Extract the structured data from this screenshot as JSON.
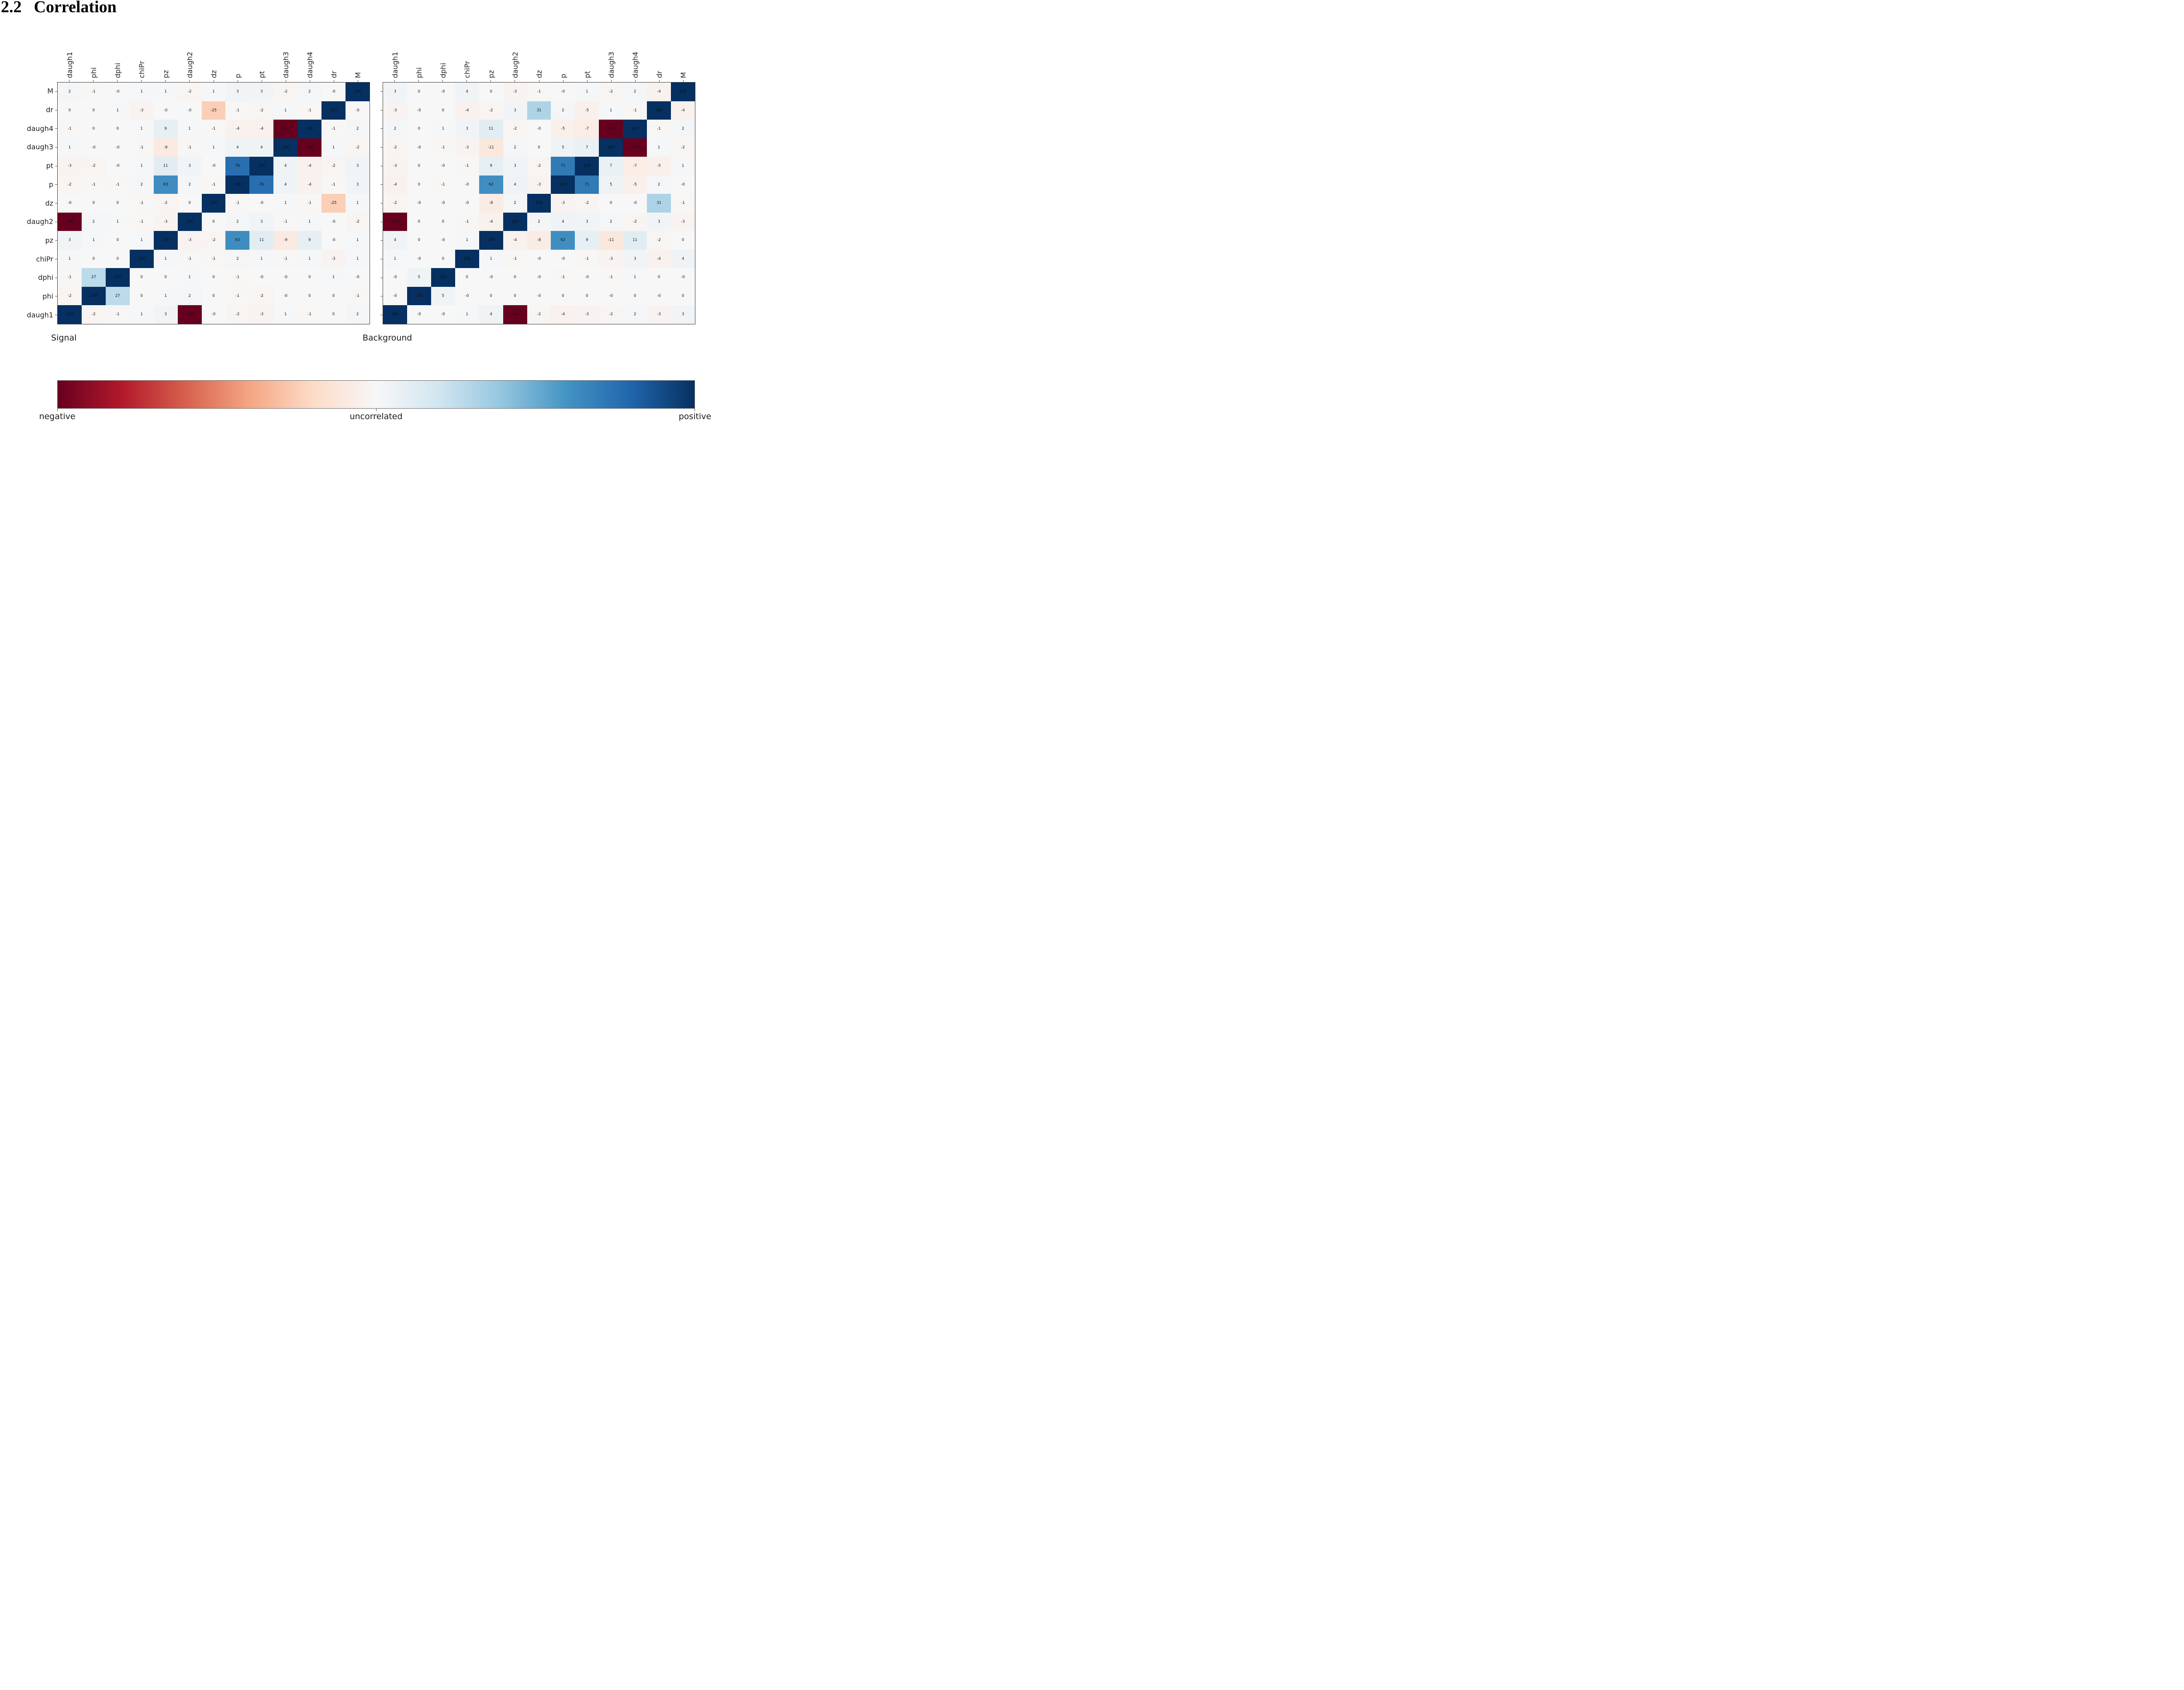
{
  "title": {
    "number": "2.2",
    "text": "Correlation"
  },
  "colorbar": {
    "left_label": "negative",
    "center_label": "uncorrelated",
    "right_label": "positive",
    "colormap_name": "RdBu",
    "colormap": [
      "#67001f",
      "#b2182b",
      "#d6604d",
      "#f4a582",
      "#fddbc7",
      "#f7f7f7",
      "#d1e5f0",
      "#92c5de",
      "#4393c3",
      "#2166ac",
      "#053061"
    ]
  },
  "chart_data": [
    {
      "type": "heatmap",
      "title": "Signal",
      "value_range": [
        -100,
        100
      ],
      "x_labels": [
        "daugh1",
        "phi",
        "dphi",
        "chiPr",
        "pz",
        "daugh2",
        "dz",
        "p",
        "pt",
        "daugh3",
        "daugh4",
        "dr",
        "M"
      ],
      "y_labels": [
        "M",
        "dr",
        "daugh4",
        "daugh3",
        "pt",
        "p",
        "dz",
        "daugh2",
        "pz",
        "chiPr",
        "dphi",
        "phi",
        "daugh1"
      ],
      "rows": [
        [
          "2",
          "-1",
          "-0",
          "1",
          "1",
          "-2",
          "1",
          "3",
          "3",
          "-2",
          "2",
          "-0",
          "100"
        ],
        [
          "0",
          "0",
          "1",
          "-3",
          "-0",
          "-0",
          "-25",
          "-1",
          "-2",
          "1",
          "-1",
          "100",
          "-0"
        ],
        [
          "-1",
          "0",
          "0",
          "1",
          "9",
          "1",
          "-1",
          "-4",
          "-4",
          "-100",
          "100",
          "-1",
          "2"
        ],
        [
          "1",
          "-0",
          "-0",
          "-1",
          "-9",
          "-1",
          "1",
          "4",
          "4",
          "100",
          "-100",
          "1",
          "-2"
        ],
        [
          "-3",
          "-2",
          "-0",
          "1",
          "11",
          "3",
          "-0",
          "76",
          "100",
          "4",
          "-4",
          "-2",
          "3"
        ],
        [
          "-2",
          "-1",
          "-1",
          "2",
          "63",
          "2",
          "-1",
          "100",
          "76",
          "4",
          "-4",
          "-1",
          "3"
        ],
        [
          "-0",
          "0",
          "0",
          "-1",
          "-2",
          "0",
          "100",
          "-1",
          "-0",
          "1",
          "-1",
          "-25",
          "1"
        ],
        [
          "-100",
          "2",
          "1",
          "-1",
          "-3",
          "100",
          "0",
          "2",
          "3",
          "-1",
          "1",
          "-0",
          "-2"
        ],
        [
          "3",
          "1",
          "0",
          "1",
          "100",
          "-3",
          "-2",
          "63",
          "11",
          "-9",
          "9",
          "-0",
          "1"
        ],
        [
          "1",
          "0",
          "0",
          "100",
          "1",
          "-1",
          "-1",
          "2",
          "1",
          "-1",
          "1",
          "-3",
          "1"
        ],
        [
          "-1",
          "27",
          "100",
          "0",
          "0",
          "1",
          "0",
          "-1",
          "-0",
          "-0",
          "0",
          "1",
          "-0"
        ],
        [
          "-2",
          "100",
          "27",
          "0",
          "1",
          "2",
          "0",
          "-1",
          "-2",
          "-0",
          "0",
          "0",
          "-1"
        ],
        [
          "100",
          "-2",
          "-1",
          "1",
          "3",
          "-100",
          "-0",
          "-2",
          "-3",
          "1",
          "-1",
          "0",
          "2"
        ]
      ]
    },
    {
      "type": "heatmap",
      "title": "Background",
      "value_range": [
        -100,
        100
      ],
      "x_labels": [
        "daugh1",
        "phi",
        "dphi",
        "chiPr",
        "pz",
        "daugh2",
        "dz",
        "p",
        "pt",
        "daugh3",
        "daugh4",
        "dr",
        "M"
      ],
      "y_labels": [
        "M",
        "dr",
        "daugh4",
        "daugh3",
        "pt",
        "p",
        "dz",
        "daugh2",
        "pz",
        "chiPr",
        "dphi",
        "phi",
        "daugh1"
      ],
      "rows": [
        [
          "3",
          "0",
          "-0",
          "4",
          "0",
          "-3",
          "-1",
          "-0",
          "1",
          "-2",
          "2",
          "-4",
          "100"
        ],
        [
          "-3",
          "-0",
          "0",
          "-4",
          "-2",
          "3",
          "31",
          "2",
          "-5",
          "1",
          "-1",
          "100",
          "-4"
        ],
        [
          "2",
          "0",
          "1",
          "3",
          "11",
          "-2",
          "-0",
          "-5",
          "-7",
          "-100",
          "100",
          "-1",
          "2"
        ],
        [
          "-2",
          "-0",
          "-1",
          "-3",
          "-11",
          "2",
          "0",
          "5",
          "7",
          "100",
          "-100",
          "1",
          "-2"
        ],
        [
          "-3",
          "0",
          "-0",
          "-1",
          "9",
          "3",
          "-2",
          "71",
          "100",
          "7",
          "-7",
          "-5",
          "1"
        ],
        [
          "-4",
          "0",
          "-1",
          "-0",
          "62",
          "4",
          "-3",
          "100",
          "71",
          "5",
          "-5",
          "2",
          "-0"
        ],
        [
          "-2",
          "-0",
          "-0",
          "-0",
          "-8",
          "2",
          "100",
          "-3",
          "-2",
          "0",
          "-0",
          "31",
          "-1"
        ],
        [
          "-100",
          "0",
          "0",
          "-1",
          "-4",
          "100",
          "2",
          "4",
          "3",
          "2",
          "-2",
          "3",
          "-3"
        ],
        [
          "4",
          "0",
          "-0",
          "1",
          "100",
          "-4",
          "-8",
          "62",
          "9",
          "-11",
          "11",
          "-2",
          "0"
        ],
        [
          "1",
          "-0",
          "0",
          "100",
          "1",
          "-1",
          "-0",
          "-0",
          "-1",
          "-3",
          "3",
          "-4",
          "4"
        ],
        [
          "-0",
          "5",
          "100",
          "0",
          "-0",
          "0",
          "-0",
          "-1",
          "-0",
          "-1",
          "1",
          "0",
          "-0"
        ],
        [
          "-0",
          "100",
          "5",
          "-0",
          "0",
          "0",
          "-0",
          "0",
          "0",
          "-0",
          "0",
          "-0",
          "0"
        ],
        [
          "100",
          "-0",
          "-0",
          "1",
          "4",
          "-100",
          "-2",
          "-4",
          "-3",
          "-2",
          "2",
          "-3",
          "3"
        ]
      ]
    }
  ]
}
